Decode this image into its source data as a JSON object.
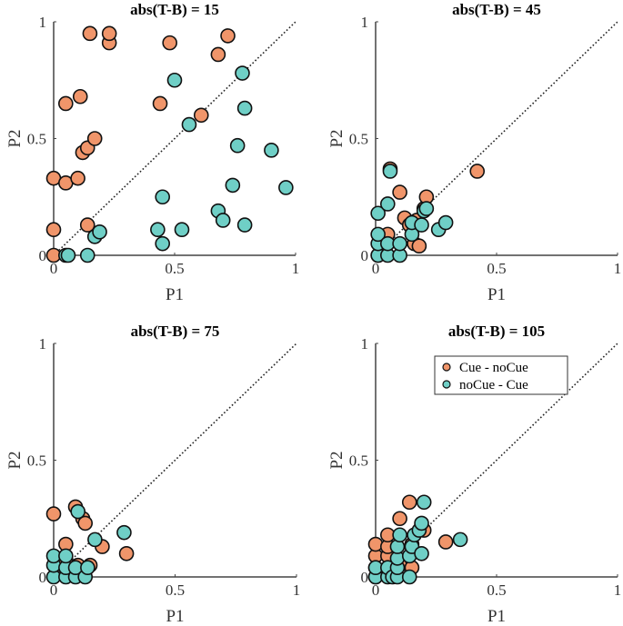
{
  "chart_data": [
    {
      "type": "scatter",
      "title": "abs(T-B) = 15",
      "xlabel": "P1",
      "ylabel": "P2",
      "xlim": [
        0,
        1
      ],
      "ylim": [
        0,
        1
      ],
      "xticks": [
        "0",
        "0.5",
        "1"
      ],
      "yticks": [
        "0",
        "0.5",
        "1"
      ],
      "diagonal": true,
      "legend": false,
      "series": [
        {
          "name": "Cue - noCue",
          "color": "#F0956A",
          "points": [
            [
              0.0,
              0.0
            ],
            [
              0.0,
              0.11
            ],
            [
              0.0,
              0.33
            ],
            [
              0.05,
              0.31
            ],
            [
              0.05,
              0.65
            ],
            [
              0.1,
              0.33
            ],
            [
              0.11,
              0.68
            ],
            [
              0.12,
              0.44
            ],
            [
              0.14,
              0.46
            ],
            [
              0.14,
              0.13
            ],
            [
              0.15,
              0.95
            ],
            [
              0.17,
              0.5
            ],
            [
              0.23,
              0.91
            ],
            [
              0.23,
              0.95
            ],
            [
              0.44,
              0.65
            ],
            [
              0.48,
              0.91
            ],
            [
              0.61,
              0.6
            ],
            [
              0.68,
              0.86
            ],
            [
              0.72,
              0.94
            ]
          ]
        },
        {
          "name": "noCue - Cue",
          "color": "#6FCFC6",
          "points": [
            [
              0.05,
              0.0
            ],
            [
              0.06,
              0.0
            ],
            [
              0.14,
              0.0
            ],
            [
              0.17,
              0.08
            ],
            [
              0.19,
              0.1
            ],
            [
              0.43,
              0.11
            ],
            [
              0.45,
              0.05
            ],
            [
              0.45,
              0.25
            ],
            [
              0.5,
              0.75
            ],
            [
              0.53,
              0.11
            ],
            [
              0.56,
              0.56
            ],
            [
              0.68,
              0.19
            ],
            [
              0.7,
              0.15
            ],
            [
              0.74,
              0.3
            ],
            [
              0.76,
              0.47
            ],
            [
              0.78,
              0.78
            ],
            [
              0.79,
              0.63
            ],
            [
              0.79,
              0.13
            ],
            [
              0.9,
              0.45
            ],
            [
              0.96,
              0.29
            ]
          ]
        }
      ]
    },
    {
      "type": "scatter",
      "title": "abs(T-B) = 45",
      "xlabel": "P1",
      "ylabel": "P2",
      "xlim": [
        0,
        1
      ],
      "ylim": [
        0,
        1
      ],
      "xticks": [
        "0",
        "0.5",
        "1"
      ],
      "yticks": [
        "0",
        "0.5",
        "1"
      ],
      "diagonal": true,
      "legend": false,
      "series": [
        {
          "name": "Cue - noCue",
          "color": "#F0956A",
          "points": [
            [
              0.01,
              0.0
            ],
            [
              0.04,
              0.02
            ],
            [
              0.05,
              0.09
            ],
            [
              0.06,
              0.37
            ],
            [
              0.1,
              0.27
            ],
            [
              0.12,
              0.16
            ],
            [
              0.14,
              0.13
            ],
            [
              0.16,
              0.05
            ],
            [
              0.17,
              0.15
            ],
            [
              0.18,
              0.04
            ],
            [
              0.2,
              0.2
            ],
            [
              0.21,
              0.25
            ],
            [
              0.42,
              0.36
            ]
          ]
        },
        {
          "name": "noCue - Cue",
          "color": "#6FCFC6",
          "points": [
            [
              0.01,
              0.0
            ],
            [
              0.01,
              0.05
            ],
            [
              0.01,
              0.09
            ],
            [
              0.01,
              0.18
            ],
            [
              0.05,
              0.0
            ],
            [
              0.05,
              0.05
            ],
            [
              0.05,
              0.22
            ],
            [
              0.06,
              0.36
            ],
            [
              0.1,
              0.0
            ],
            [
              0.1,
              0.05
            ],
            [
              0.15,
              0.09
            ],
            [
              0.15,
              0.14
            ],
            [
              0.19,
              0.13
            ],
            [
              0.2,
              0.19
            ],
            [
              0.21,
              0.2
            ],
            [
              0.26,
              0.11
            ],
            [
              0.29,
              0.14
            ]
          ]
        }
      ]
    },
    {
      "type": "scatter",
      "title": "abs(T-B) = 75",
      "xlabel": "P1",
      "ylabel": "P2",
      "xlim": [
        0,
        1
      ],
      "ylim": [
        0,
        1
      ],
      "xticks": [
        "0",
        "0.5",
        "1"
      ],
      "yticks": [
        "0",
        "0.5",
        "1"
      ],
      "diagonal": true,
      "legend": false,
      "series": [
        {
          "name": "Cue - noCue",
          "color": "#F0956A",
          "points": [
            [
              0.0,
              0.27
            ],
            [
              0.05,
              0.14
            ],
            [
              0.05,
              0.07
            ],
            [
              0.09,
              0.3
            ],
            [
              0.1,
              0.05
            ],
            [
              0.12,
              0.25
            ],
            [
              0.13,
              0.23
            ],
            [
              0.15,
              0.05
            ],
            [
              0.2,
              0.13
            ],
            [
              0.3,
              0.1
            ]
          ]
        },
        {
          "name": "noCue - Cue",
          "color": "#6FCFC6",
          "points": [
            [
              0.0,
              0.0
            ],
            [
              0.0,
              0.05
            ],
            [
              0.0,
              0.09
            ],
            [
              0.05,
              0.0
            ],
            [
              0.05,
              0.04
            ],
            [
              0.05,
              0.09
            ],
            [
              0.09,
              0.0
            ],
            [
              0.09,
              0.04
            ],
            [
              0.1,
              0.28
            ],
            [
              0.13,
              0.0
            ],
            [
              0.14,
              0.04
            ],
            [
              0.17,
              0.16
            ],
            [
              0.29,
              0.19
            ]
          ]
        }
      ]
    },
    {
      "type": "scatter",
      "title": "abs(T-B) = 105",
      "xlabel": "P1",
      "ylabel": "P2",
      "xlim": [
        0,
        1
      ],
      "ylim": [
        0,
        1
      ],
      "xticks": [
        "0",
        "0.5",
        "1"
      ],
      "yticks": [
        "0",
        "0.5",
        "1"
      ],
      "diagonal": true,
      "legend": true,
      "legend_location": "top-right",
      "legend_entries": [
        "Cue - noCue",
        "noCue - Cue"
      ],
      "series": [
        {
          "name": "Cue - noCue",
          "color": "#F0956A",
          "points": [
            [
              0.0,
              0.0
            ],
            [
              0.0,
              0.04
            ],
            [
              0.0,
              0.09
            ],
            [
              0.0,
              0.14
            ],
            [
              0.05,
              0.04
            ],
            [
              0.05,
              0.09
            ],
            [
              0.05,
              0.13
            ],
            [
              0.05,
              0.18
            ],
            [
              0.1,
              0.25
            ],
            [
              0.1,
              0.05
            ],
            [
              0.14,
              0.32
            ],
            [
              0.15,
              0.14
            ],
            [
              0.15,
              0.04
            ],
            [
              0.2,
              0.2
            ],
            [
              0.29,
              0.15
            ]
          ]
        },
        {
          "name": "noCue - Cue",
          "color": "#6FCFC6",
          "points": [
            [
              0.0,
              0.0
            ],
            [
              0.0,
              0.04
            ],
            [
              0.05,
              0.0
            ],
            [
              0.05,
              0.04
            ],
            [
              0.07,
              0.0
            ],
            [
              0.09,
              0.0
            ],
            [
              0.09,
              0.04
            ],
            [
              0.09,
              0.08
            ],
            [
              0.09,
              0.13
            ],
            [
              0.1,
              0.18
            ],
            [
              0.14,
              0.09
            ],
            [
              0.14,
              0.0
            ],
            [
              0.15,
              0.13
            ],
            [
              0.16,
              0.18
            ],
            [
              0.18,
              0.2
            ],
            [
              0.19,
              0.1
            ],
            [
              0.19,
              0.23
            ],
            [
              0.2,
              0.32
            ],
            [
              0.35,
              0.16
            ]
          ]
        }
      ]
    }
  ]
}
